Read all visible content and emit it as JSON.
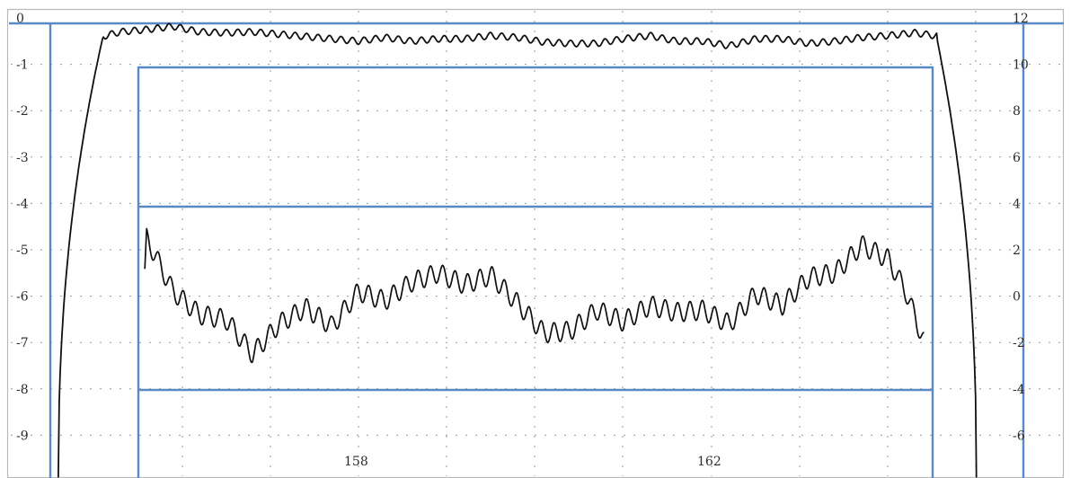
{
  "chart_data": [
    {
      "type": "line",
      "title": "",
      "xlabel": "",
      "ylabel": "",
      "x_tick_labels": [
        "158",
        "162"
      ],
      "y_tick_labels": [
        "0",
        "-1",
        "-2",
        "-3",
        "-4",
        "-5",
        "-6",
        "-7",
        "-8",
        "-9"
      ],
      "ylim": [
        -10,
        0
      ],
      "grid": true,
      "colors": {
        "line": "#101010",
        "grid": "#9a9a9a",
        "overlay": "#5a8ac6"
      },
      "x": [
        154.6,
        154.8,
        155.0,
        155.3,
        155.6,
        155.9,
        156.2,
        156.5,
        156.8,
        157.1,
        157.4,
        157.7,
        158.0,
        158.3,
        158.6,
        158.9,
        159.2,
        159.5,
        159.8,
        160.1,
        160.4,
        160.7,
        161.0,
        161.3,
        161.6,
        161.9,
        162.2,
        162.5,
        162.8,
        163.1,
        163.4,
        163.7,
        164.0,
        164.3,
        164.6,
        164.8,
        165.0
      ],
      "series": [
        {
          "values": [
            -9.9,
            -3.5,
            -0.45,
            -0.3,
            -0.25,
            -0.18,
            -0.3,
            -0.32,
            -0.3,
            -0.35,
            -0.4,
            -0.45,
            -0.5,
            -0.42,
            -0.5,
            -0.45,
            -0.45,
            -0.38,
            -0.42,
            -0.52,
            -0.55,
            -0.55,
            -0.45,
            -0.38,
            -0.5,
            -0.5,
            -0.6,
            -0.45,
            -0.45,
            -0.55,
            -0.5,
            -0.42,
            -0.38,
            -0.32,
            -0.4,
            -3.5,
            -9.9
          ]
        }
      ]
    },
    {
      "type": "line",
      "title": "",
      "xlabel": "",
      "ylabel": "",
      "y_tick_labels": [
        "12",
        "10",
        "8",
        "6",
        "4",
        "2",
        "0",
        "-2",
        "-4",
        "-6"
      ],
      "ylim": [
        -8,
        12
      ],
      "grid": true,
      "x": [
        155.6,
        155.9,
        156.2,
        156.5,
        156.8,
        157.1,
        157.4,
        157.7,
        158.0,
        158.3,
        158.6,
        158.9,
        159.2,
        159.5,
        159.8,
        160.1,
        160.4,
        160.7,
        161.0,
        161.3,
        161.6,
        161.9,
        162.2,
        162.5,
        162.8,
        163.1,
        163.4,
        163.7,
        164.0,
        164.2,
        164.4
      ],
      "series": [
        {
          "values": [
            2.5,
            0.2,
            -0.8,
            -1.0,
            -2.5,
            -1.2,
            -0.5,
            -1.3,
            0.2,
            -0.2,
            0.6,
            1.0,
            0.5,
            0.9,
            -0.3,
            -1.6,
            -1.5,
            -0.6,
            -1.1,
            -0.4,
            -0.7,
            -0.6,
            -1.2,
            0.1,
            -0.4,
            0.8,
            1.0,
            2.2,
            1.6,
            0.2,
            -1.9
          ]
        }
      ]
    }
  ]
}
